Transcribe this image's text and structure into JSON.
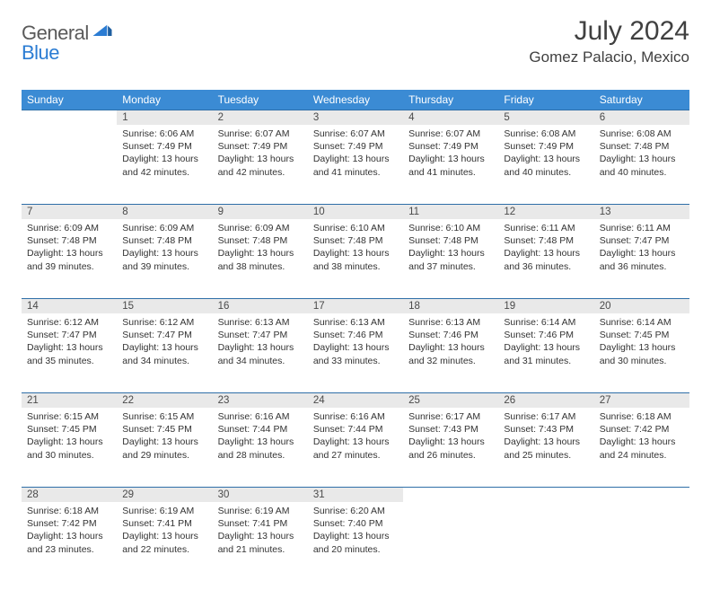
{
  "brand": {
    "general": "General",
    "blue": "Blue"
  },
  "header": {
    "month_title": "July 2024",
    "location": "Gomez Palacio, Mexico"
  },
  "colors": {
    "header_bg": "#3b8bd4",
    "header_text": "#ffffff",
    "daynum_bg": "#e9e9e9",
    "daynum_text": "#4a4a4a",
    "body_text": "#333333",
    "rule": "#2f6fa8",
    "title_text": "#404040"
  },
  "typography": {
    "month_title_pt": 30,
    "location_pt": 17,
    "weekday_pt": 12,
    "daynum_pt": 11.5,
    "cell_pt": 10.5
  },
  "weekdays": [
    "Sunday",
    "Monday",
    "Tuesday",
    "Wednesday",
    "Thursday",
    "Friday",
    "Saturday"
  ],
  "weeks": [
    [
      null,
      {
        "n": "1",
        "sr": "Sunrise: 6:06 AM",
        "ss": "Sunset: 7:49 PM",
        "d1": "Daylight: 13 hours",
        "d2": "and 42 minutes."
      },
      {
        "n": "2",
        "sr": "Sunrise: 6:07 AM",
        "ss": "Sunset: 7:49 PM",
        "d1": "Daylight: 13 hours",
        "d2": "and 42 minutes."
      },
      {
        "n": "3",
        "sr": "Sunrise: 6:07 AM",
        "ss": "Sunset: 7:49 PM",
        "d1": "Daylight: 13 hours",
        "d2": "and 41 minutes."
      },
      {
        "n": "4",
        "sr": "Sunrise: 6:07 AM",
        "ss": "Sunset: 7:49 PM",
        "d1": "Daylight: 13 hours",
        "d2": "and 41 minutes."
      },
      {
        "n": "5",
        "sr": "Sunrise: 6:08 AM",
        "ss": "Sunset: 7:49 PM",
        "d1": "Daylight: 13 hours",
        "d2": "and 40 minutes."
      },
      {
        "n": "6",
        "sr": "Sunrise: 6:08 AM",
        "ss": "Sunset: 7:48 PM",
        "d1": "Daylight: 13 hours",
        "d2": "and 40 minutes."
      }
    ],
    [
      {
        "n": "7",
        "sr": "Sunrise: 6:09 AM",
        "ss": "Sunset: 7:48 PM",
        "d1": "Daylight: 13 hours",
        "d2": "and 39 minutes."
      },
      {
        "n": "8",
        "sr": "Sunrise: 6:09 AM",
        "ss": "Sunset: 7:48 PM",
        "d1": "Daylight: 13 hours",
        "d2": "and 39 minutes."
      },
      {
        "n": "9",
        "sr": "Sunrise: 6:09 AM",
        "ss": "Sunset: 7:48 PM",
        "d1": "Daylight: 13 hours",
        "d2": "and 38 minutes."
      },
      {
        "n": "10",
        "sr": "Sunrise: 6:10 AM",
        "ss": "Sunset: 7:48 PM",
        "d1": "Daylight: 13 hours",
        "d2": "and 38 minutes."
      },
      {
        "n": "11",
        "sr": "Sunrise: 6:10 AM",
        "ss": "Sunset: 7:48 PM",
        "d1": "Daylight: 13 hours",
        "d2": "and 37 minutes."
      },
      {
        "n": "12",
        "sr": "Sunrise: 6:11 AM",
        "ss": "Sunset: 7:48 PM",
        "d1": "Daylight: 13 hours",
        "d2": "and 36 minutes."
      },
      {
        "n": "13",
        "sr": "Sunrise: 6:11 AM",
        "ss": "Sunset: 7:47 PM",
        "d1": "Daylight: 13 hours",
        "d2": "and 36 minutes."
      }
    ],
    [
      {
        "n": "14",
        "sr": "Sunrise: 6:12 AM",
        "ss": "Sunset: 7:47 PM",
        "d1": "Daylight: 13 hours",
        "d2": "and 35 minutes."
      },
      {
        "n": "15",
        "sr": "Sunrise: 6:12 AM",
        "ss": "Sunset: 7:47 PM",
        "d1": "Daylight: 13 hours",
        "d2": "and 34 minutes."
      },
      {
        "n": "16",
        "sr": "Sunrise: 6:13 AM",
        "ss": "Sunset: 7:47 PM",
        "d1": "Daylight: 13 hours",
        "d2": "and 34 minutes."
      },
      {
        "n": "17",
        "sr": "Sunrise: 6:13 AM",
        "ss": "Sunset: 7:46 PM",
        "d1": "Daylight: 13 hours",
        "d2": "and 33 minutes."
      },
      {
        "n": "18",
        "sr": "Sunrise: 6:13 AM",
        "ss": "Sunset: 7:46 PM",
        "d1": "Daylight: 13 hours",
        "d2": "and 32 minutes."
      },
      {
        "n": "19",
        "sr": "Sunrise: 6:14 AM",
        "ss": "Sunset: 7:46 PM",
        "d1": "Daylight: 13 hours",
        "d2": "and 31 minutes."
      },
      {
        "n": "20",
        "sr": "Sunrise: 6:14 AM",
        "ss": "Sunset: 7:45 PM",
        "d1": "Daylight: 13 hours",
        "d2": "and 30 minutes."
      }
    ],
    [
      {
        "n": "21",
        "sr": "Sunrise: 6:15 AM",
        "ss": "Sunset: 7:45 PM",
        "d1": "Daylight: 13 hours",
        "d2": "and 30 minutes."
      },
      {
        "n": "22",
        "sr": "Sunrise: 6:15 AM",
        "ss": "Sunset: 7:45 PM",
        "d1": "Daylight: 13 hours",
        "d2": "and 29 minutes."
      },
      {
        "n": "23",
        "sr": "Sunrise: 6:16 AM",
        "ss": "Sunset: 7:44 PM",
        "d1": "Daylight: 13 hours",
        "d2": "and 28 minutes."
      },
      {
        "n": "24",
        "sr": "Sunrise: 6:16 AM",
        "ss": "Sunset: 7:44 PM",
        "d1": "Daylight: 13 hours",
        "d2": "and 27 minutes."
      },
      {
        "n": "25",
        "sr": "Sunrise: 6:17 AM",
        "ss": "Sunset: 7:43 PM",
        "d1": "Daylight: 13 hours",
        "d2": "and 26 minutes."
      },
      {
        "n": "26",
        "sr": "Sunrise: 6:17 AM",
        "ss": "Sunset: 7:43 PM",
        "d1": "Daylight: 13 hours",
        "d2": "and 25 minutes."
      },
      {
        "n": "27",
        "sr": "Sunrise: 6:18 AM",
        "ss": "Sunset: 7:42 PM",
        "d1": "Daylight: 13 hours",
        "d2": "and 24 minutes."
      }
    ],
    [
      {
        "n": "28",
        "sr": "Sunrise: 6:18 AM",
        "ss": "Sunset: 7:42 PM",
        "d1": "Daylight: 13 hours",
        "d2": "and 23 minutes."
      },
      {
        "n": "29",
        "sr": "Sunrise: 6:19 AM",
        "ss": "Sunset: 7:41 PM",
        "d1": "Daylight: 13 hours",
        "d2": "and 22 minutes."
      },
      {
        "n": "30",
        "sr": "Sunrise: 6:19 AM",
        "ss": "Sunset: 7:41 PM",
        "d1": "Daylight: 13 hours",
        "d2": "and 21 minutes."
      },
      {
        "n": "31",
        "sr": "Sunrise: 6:20 AM",
        "ss": "Sunset: 7:40 PM",
        "d1": "Daylight: 13 hours",
        "d2": "and 20 minutes."
      },
      null,
      null,
      null
    ]
  ]
}
